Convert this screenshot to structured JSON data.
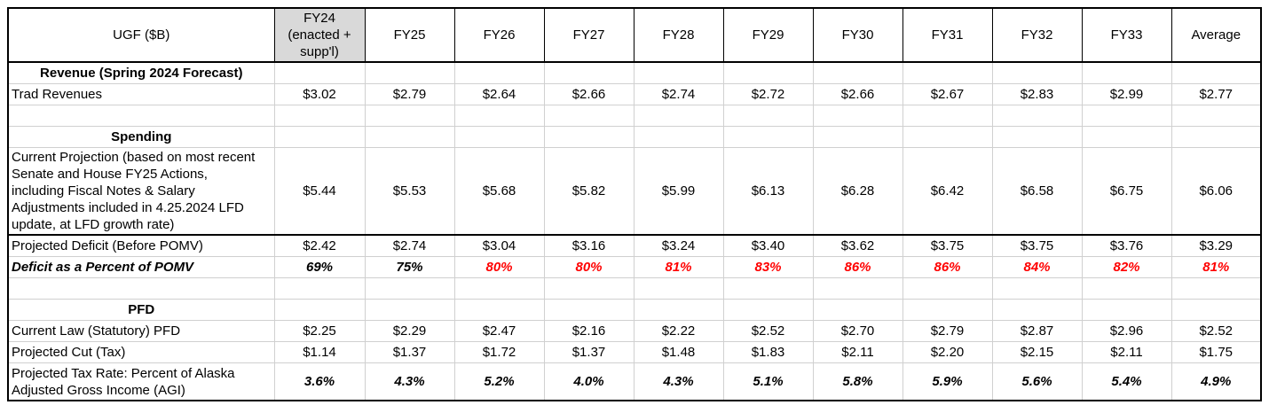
{
  "header": {
    "label": "UGF ($B)",
    "fy24": [
      "FY24",
      "(enacted +",
      "supp'l)"
    ],
    "years": [
      "FY25",
      "FY26",
      "FY27",
      "FY28",
      "FY29",
      "FY30",
      "FY31",
      "FY32",
      "FY33"
    ],
    "average": "Average"
  },
  "sections": {
    "revenue": "Revenue (Spring 2024 Forecast)",
    "spending": "Spending",
    "pfd": "PFD"
  },
  "rows": {
    "trad_revenues": {
      "label": "Trad Revenues",
      "values": [
        "$3.02",
        "$2.79",
        "$2.64",
        "$2.66",
        "$2.74",
        "$2.72",
        "$2.66",
        "$2.67",
        "$2.83",
        "$2.99",
        "$2.77"
      ]
    },
    "current_projection": {
      "label_lines": [
        "Current Projection (based on most recent",
        "Senate and House FY25 Actions,",
        "including Fiscal Notes & Salary",
        "Adjustments included in 4.25.2024 LFD",
        "update, at LFD growth rate)"
      ],
      "values": [
        "$5.44",
        "$5.53",
        "$5.68",
        "$5.82",
        "$5.99",
        "$6.13",
        "$6.28",
        "$6.42",
        "$6.58",
        "$6.75",
        "$6.06"
      ]
    },
    "projected_deficit": {
      "label": "Projected Deficit (Before POMV)",
      "values": [
        "$2.42",
        "$2.74",
        "$3.04",
        "$3.16",
        "$3.24",
        "$3.40",
        "$3.62",
        "$3.75",
        "$3.75",
        "$3.76",
        "$3.29"
      ]
    },
    "deficit_percent": {
      "label": "Deficit as a Percent of POMV",
      "values": [
        "69%",
        "75%",
        "80%",
        "80%",
        "81%",
        "83%",
        "86%",
        "86%",
        "84%",
        "82%",
        "81%"
      ],
      "red_flags": [
        false,
        false,
        true,
        true,
        true,
        true,
        true,
        true,
        true,
        true,
        true
      ],
      "red_color": "#ff0000"
    },
    "current_law_pfd": {
      "label": "Current Law (Statutory) PFD",
      "values": [
        "$2.25",
        "$2.29",
        "$2.47",
        "$2.16",
        "$2.22",
        "$2.52",
        "$2.70",
        "$2.79",
        "$2.87",
        "$2.96",
        "$2.52"
      ]
    },
    "projected_cut": {
      "label": "Projected Cut (Tax)",
      "values": [
        "$1.14",
        "$1.37",
        "$1.72",
        "$1.37",
        "$1.48",
        "$1.83",
        "$2.11",
        "$2.20",
        "$2.15",
        "$2.11",
        "$1.75"
      ]
    },
    "projected_tax_rate": {
      "label_lines": [
        "Projected Tax Rate: Percent of Alaska",
        "Adjusted Gross Income (AGI)"
      ],
      "values": [
        "3.6%",
        "4.3%",
        "5.2%",
        "4.0%",
        "4.3%",
        "5.1%",
        "5.8%",
        "5.9%",
        "5.6%",
        "5.4%",
        "4.9%"
      ]
    }
  },
  "colors": {
    "header_highlight": "#d9d9d9",
    "negative_red": "#ff0000"
  }
}
